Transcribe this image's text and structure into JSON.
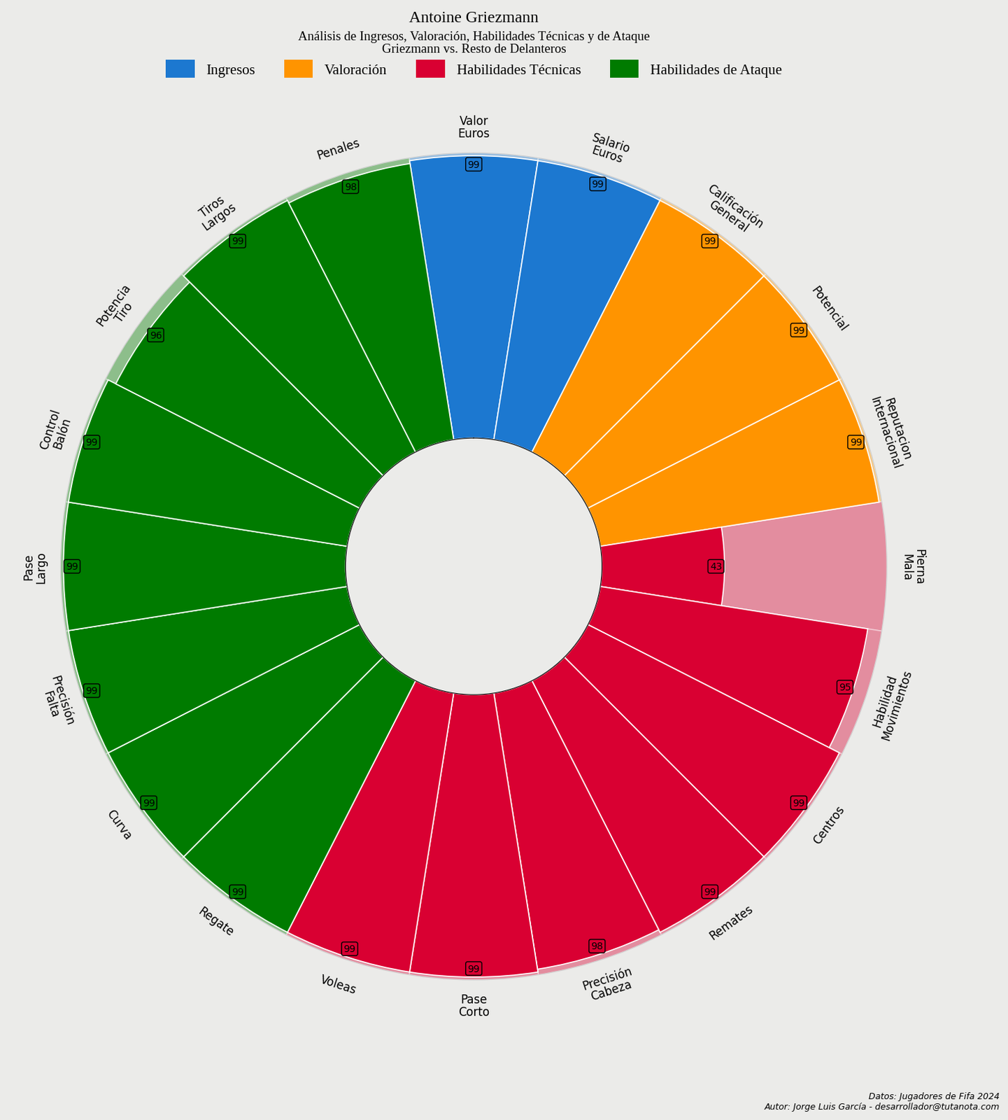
{
  "chart_data": {
    "type": "radial_bar",
    "title": "Antoine Griezmann",
    "subtitle": "Análisis de Ingresos, Valoración, Habilidades Técnicas y de Ataque\nGriezmann vs. Resto de Delanteros",
    "caption": "Datos: Jugadores de Fifa 2024\nAutor: Jorge Luis García - desarrollador@tutanota.com",
    "categories": [
      "Valor\nEuros",
      "Salario\nEuros",
      "Calificación\nGeneral",
      "Potencial",
      "Reputacion\nInternacional",
      "Pierna\nMala",
      "Habilidad\nMovimientos",
      "Centros",
      "Remates",
      "Precisión\nCabeza",
      "Pase\nCorto",
      "Voleas",
      "Regate",
      "Curva",
      "Precisión\nFalta",
      "Pase\nLargo",
      "Control\nBalón",
      "Potencia\nTiro",
      "Tiros\nLargos",
      "Penales"
    ],
    "series": [
      {
        "name": "Ingresos",
        "color": "#1c78d0",
        "values": [
          99,
          99,
          null,
          null,
          null,
          null,
          null,
          null,
          null,
          null,
          null,
          null,
          null,
          null,
          null,
          null,
          null,
          null,
          null,
          null
        ]
      },
      {
        "name": "Valoración",
        "color": "#ff9400",
        "values": [
          null,
          null,
          99,
          99,
          99,
          null,
          null,
          null,
          null,
          null,
          null,
          null,
          null,
          null,
          null,
          null,
          null,
          null,
          null,
          null
        ]
      },
      {
        "name": "Habilidades Técnicas",
        "color": "#d90032",
        "values": [
          null,
          null,
          null,
          null,
          null,
          43,
          95,
          99,
          99,
          98,
          99,
          99,
          null,
          null,
          null,
          null,
          null,
          null,
          null,
          null
        ]
      },
      {
        "name": "Habilidades de Ataque",
        "color": "#007b00",
        "values": [
          null,
          null,
          null,
          null,
          null,
          null,
          null,
          null,
          null,
          null,
          null,
          null,
          99,
          99,
          99,
          99,
          99,
          96,
          99,
          98
        ]
      }
    ],
    "ylim": [
      0,
      100
    ],
    "yticks": [],
    "tick_labels": false,
    "grid": false,
    "data_labels": true,
    "legend": "upper center"
  }
}
